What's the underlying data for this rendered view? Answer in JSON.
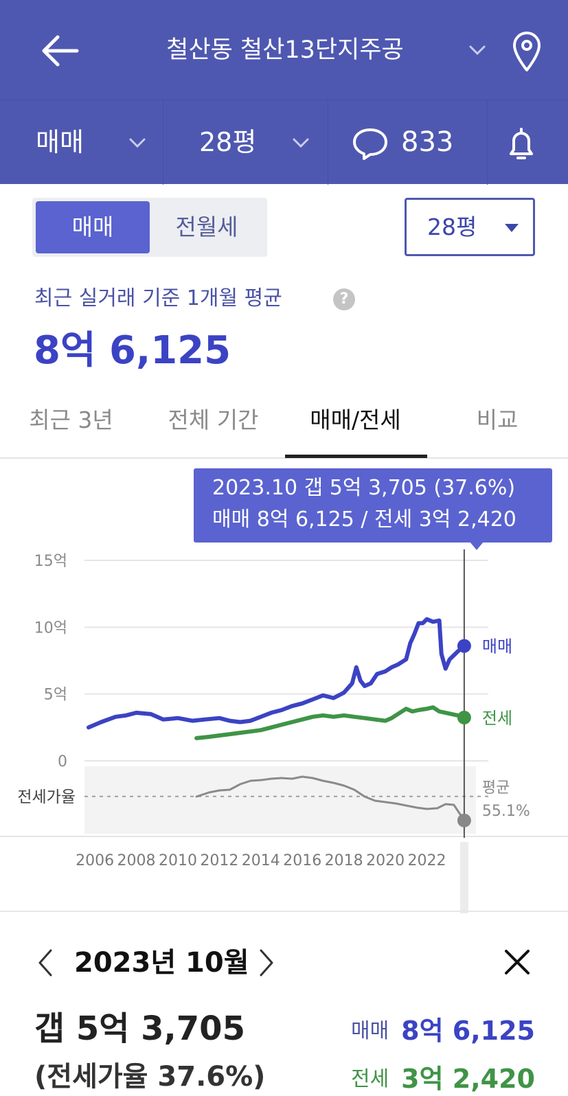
{
  "header": {
    "title": "철산동 철산13단지주공"
  },
  "subbar": {
    "trade_type": "매매",
    "size": "28평",
    "comment_count": "833"
  },
  "filters": {
    "segment_active": "매매",
    "segment_inactive": "전월세",
    "size_select": "28평"
  },
  "summary": {
    "subtitle": "최근 실거래 기준 1개월 평균",
    "help": "?",
    "price": "8억 6,125"
  },
  "tabs": [
    {
      "label": "최근 3년"
    },
    {
      "label": "전체 기간"
    },
    {
      "label": "매매/전세"
    },
    {
      "label": "비교"
    }
  ],
  "tooltip": {
    "line1": "2023.10  갭 5억 3,705 (37.6%)",
    "line2": "매매 8억 6,125 / 전세 3억 2,420"
  },
  "colors": {
    "header_bg": "#4f58b0",
    "accent": "#5a63cf",
    "sale": "#3b43c4",
    "lease": "#3f9446",
    "ratio": "#8a8a8a"
  },
  "chart_data": {
    "type": "line",
    "yticks": [
      "15억",
      "10억",
      "5억",
      "0"
    ],
    "ylim": [
      0,
      15
    ],
    "xlim": [
      2005.5,
      2024.3
    ],
    "xticks": [
      "2006",
      "2008",
      "2010",
      "2012",
      "2014",
      "2016",
      "2018",
      "2020",
      "2022"
    ],
    "series_labels": {
      "sale": "매매",
      "lease": "전세"
    },
    "ratio_label": "전세가율",
    "avg_label": "평균",
    "avg_value": "55.1%",
    "series": [
      {
        "key": "sale",
        "name": "매매",
        "x": [
          2005.7,
          2006.3,
          2007.0,
          2007.5,
          2008.0,
          2008.7,
          2009.3,
          2010.0,
          2010.7,
          2011.3,
          2012.0,
          2012.5,
          2013.0,
          2013.5,
          2014.0,
          2014.5,
          2015.0,
          2015.5,
          2016.0,
          2016.5,
          2017.0,
          2017.5,
          2018.0,
          2018.4,
          2018.6,
          2018.8,
          2019.0,
          2019.3,
          2019.6,
          2020.0,
          2020.3,
          2020.6,
          2021.0,
          2021.2,
          2021.4,
          2021.6,
          2021.8,
          2022.0,
          2022.3,
          2022.6,
          2022.7,
          2022.9,
          2023.1,
          2023.3,
          2023.5,
          2023.8
        ],
        "values": [
          2.5,
          2.9,
          3.3,
          3.4,
          3.6,
          3.5,
          3.1,
          3.2,
          3.0,
          3.1,
          3.2,
          3.0,
          2.9,
          3.0,
          3.3,
          3.6,
          3.8,
          4.1,
          4.3,
          4.6,
          4.9,
          4.7,
          5.1,
          5.8,
          7.0,
          6.0,
          5.6,
          5.8,
          6.5,
          6.7,
          7.0,
          7.2,
          7.6,
          8.8,
          9.5,
          10.3,
          10.3,
          10.6,
          10.4,
          10.5,
          8.0,
          6.9,
          7.6,
          7.9,
          8.2,
          8.6
        ]
      },
      {
        "key": "lease",
        "name": "전세",
        "x": [
          2010.9,
          2011.5,
          2012.0,
          2012.5,
          2013.0,
          2013.5,
          2014.0,
          2014.5,
          2015.0,
          2015.5,
          2016.0,
          2016.5,
          2017.0,
          2017.5,
          2018.0,
          2018.5,
          2019.0,
          2019.5,
          2020.0,
          2020.3,
          2020.6,
          2021.0,
          2021.3,
          2021.6,
          2022.0,
          2022.3,
          2022.6,
          2022.9,
          2023.2,
          2023.5,
          2023.8
        ],
        "values": [
          1.7,
          1.8,
          1.9,
          2.0,
          2.1,
          2.2,
          2.3,
          2.5,
          2.7,
          2.9,
          3.1,
          3.3,
          3.4,
          3.3,
          3.4,
          3.3,
          3.2,
          3.1,
          3.0,
          3.2,
          3.5,
          3.9,
          3.7,
          3.8,
          3.9,
          4.0,
          3.7,
          3.6,
          3.5,
          3.4,
          3.24
        ]
      },
      {
        "key": "ratio",
        "name": "전세가율",
        "x": [
          2010.9,
          2011.5,
          2012.0,
          2012.5,
          2013.0,
          2013.5,
          2014.0,
          2014.5,
          2015.0,
          2015.5,
          2016.0,
          2016.5,
          2017.0,
          2017.5,
          2018.0,
          2018.5,
          2019.0,
          2019.5,
          2020.0,
          2020.5,
          2021.0,
          2021.5,
          2022.0,
          2022.5,
          2022.9,
          2023.3,
          2023.8
        ],
        "values": [
          55.0,
          58.0,
          59.5,
          60.0,
          64.0,
          66.5,
          67.0,
          68.0,
          68.5,
          68.0,
          69.5,
          68.5,
          66.5,
          65.0,
          63.0,
          60.0,
          55.0,
          52.0,
          51.0,
          50.0,
          48.5,
          47.0,
          46.0,
          46.5,
          49.5,
          49.0,
          37.6
        ]
      }
    ],
    "ratio_ylim": [
      30,
      75
    ],
    "ratio_avg": 55.1,
    "cursor_x": 2023.8
  },
  "detail": {
    "month": "2023년 10월",
    "gap": "갭 5억 3,705",
    "ratio": "(전세가율 37.6%)",
    "sale_label": "매매",
    "sale_value": "8억 6,125",
    "lease_label": "전세",
    "lease_value": "3억 2,420"
  }
}
